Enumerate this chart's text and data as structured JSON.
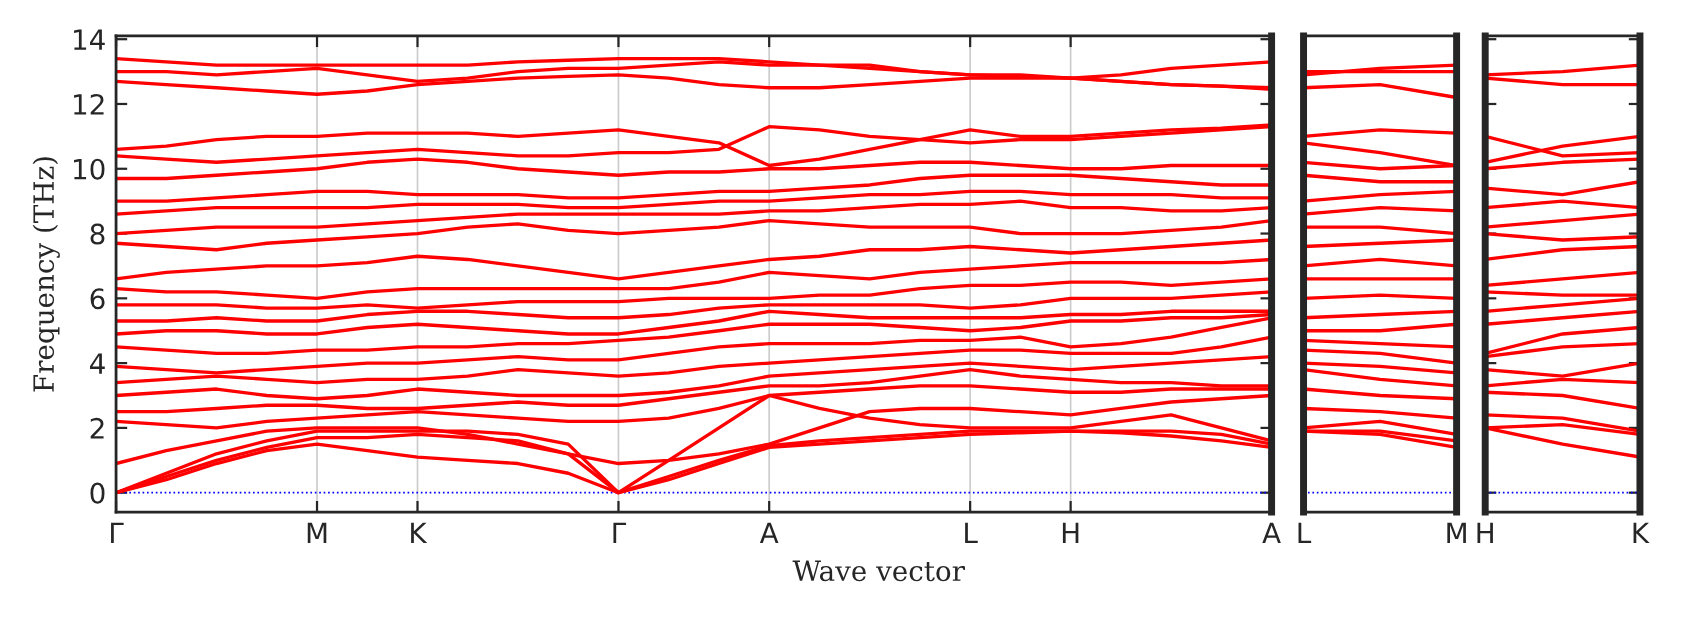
{
  "chart_data": [
    {
      "type": "line",
      "xlabel": "Wave vector",
      "ylabel": "Frequency (THz)",
      "ylim": [
        -0.6,
        14.1
      ],
      "categories": [
        "Γ",
        null,
        null,
        null,
        "M",
        null,
        "K",
        null,
        null,
        null,
        "Γ",
        null,
        null,
        "A",
        null,
        null,
        null,
        "L",
        null,
        "H",
        null,
        null,
        null,
        "A"
      ],
      "yticks": [
        0,
        2,
        4,
        6,
        8,
        10,
        12,
        14
      ],
      "grid": "x",
      "ref_lines": [
        {
          "axis": "y",
          "value": 0,
          "color": "#0000ff",
          "line_style": "dotted"
        }
      ],
      "series": [
        {
          "color": "#ff0000",
          "values": [
            0,
            0.4,
            0.9,
            1.3,
            1.5,
            1.3,
            1.1,
            1.0,
            0.9,
            0.6,
            0,
            0.4,
            0.9,
            1.4,
            1.5,
            1.6,
            1.7,
            1.8,
            1.85,
            1.9,
            1.85,
            1.75,
            1.6,
            1.4
          ]
        },
        {
          "color": "#ff0000",
          "values": [
            0,
            0.5,
            1.0,
            1.4,
            1.7,
            1.7,
            1.8,
            1.7,
            1.6,
            1.2,
            0,
            0.5,
            1.0,
            1.45,
            1.6,
            1.7,
            1.8,
            1.9,
            1.9,
            1.9,
            1.9,
            1.9,
            1.8,
            1.5
          ]
        },
        {
          "color": "#ff0000",
          "values": [
            0,
            0.6,
            1.2,
            1.6,
            1.9,
            1.9,
            1.9,
            1.9,
            1.8,
            1.5,
            0,
            1.0,
            2.0,
            3.0,
            2.6,
            2.3,
            2.1,
            2.0,
            2.0,
            2.0,
            2.2,
            2.4,
            2.0,
            1.6
          ]
        },
        {
          "color": "#ff0000",
          "values": [
            0.9,
            1.3,
            1.6,
            1.9,
            2.0,
            2.0,
            2.0,
            1.8,
            1.5,
            1.2,
            0.9,
            1.0,
            1.2,
            1.5,
            2.0,
            2.5,
            2.6,
            2.6,
            2.5,
            2.4,
            2.6,
            2.8,
            2.9,
            3.0
          ]
        },
        {
          "color": "#ff0000",
          "values": [
            2.2,
            2.1,
            2.0,
            2.2,
            2.3,
            2.4,
            2.5,
            2.4,
            2.3,
            2.2,
            2.2,
            2.3,
            2.6,
            3.0,
            3.1,
            3.2,
            3.3,
            3.3,
            3.2,
            3.1,
            3.1,
            3.2,
            3.2,
            3.2
          ]
        },
        {
          "color": "#ff0000",
          "values": [
            2.5,
            2.5,
            2.6,
            2.7,
            2.7,
            2.6,
            2.6,
            2.7,
            2.8,
            2.7,
            2.7,
            2.9,
            3.1,
            3.3,
            3.3,
            3.4,
            3.6,
            3.8,
            3.6,
            3.5,
            3.4,
            3.4,
            3.3,
            3.3
          ]
        },
        {
          "color": "#ff0000",
          "values": [
            3.0,
            3.1,
            3.2,
            3.0,
            2.9,
            3.0,
            3.2,
            3.1,
            3.0,
            3.0,
            3.0,
            3.1,
            3.3,
            3.6,
            3.7,
            3.8,
            3.9,
            4.0,
            3.9,
            3.8,
            3.9,
            4.0,
            4.1,
            4.2
          ]
        },
        {
          "color": "#ff0000",
          "values": [
            3.4,
            3.5,
            3.6,
            3.5,
            3.4,
            3.5,
            3.5,
            3.6,
            3.8,
            3.7,
            3.6,
            3.7,
            3.9,
            4.0,
            4.1,
            4.2,
            4.3,
            4.4,
            4.4,
            4.3,
            4.3,
            4.3,
            4.5,
            4.8
          ]
        },
        {
          "color": "#ff0000",
          "values": [
            3.9,
            3.8,
            3.7,
            3.8,
            3.9,
            4.0,
            4.0,
            4.1,
            4.2,
            4.1,
            4.1,
            4.3,
            4.5,
            4.6,
            4.6,
            4.6,
            4.7,
            4.7,
            4.8,
            4.5,
            4.6,
            4.8,
            5.1,
            5.4
          ]
        },
        {
          "color": "#ff0000",
          "values": [
            4.5,
            4.4,
            4.3,
            4.3,
            4.4,
            4.4,
            4.5,
            4.5,
            4.6,
            4.6,
            4.7,
            4.8,
            5.0,
            5.2,
            5.2,
            5.2,
            5.1,
            5.0,
            5.1,
            5.3,
            5.3,
            5.4,
            5.4,
            5.5
          ]
        },
        {
          "color": "#ff0000",
          "values": [
            4.9,
            5.0,
            5.0,
            4.9,
            4.9,
            5.1,
            5.2,
            5.1,
            5.0,
            4.9,
            4.9,
            5.1,
            5.3,
            5.6,
            5.5,
            5.4,
            5.4,
            5.4,
            5.4,
            5.5,
            5.5,
            5.6,
            5.6,
            5.6
          ]
        },
        {
          "color": "#ff0000",
          "values": [
            5.3,
            5.3,
            5.4,
            5.3,
            5.3,
            5.5,
            5.6,
            5.6,
            5.5,
            5.4,
            5.4,
            5.5,
            5.7,
            5.8,
            5.8,
            5.8,
            5.8,
            5.7,
            5.8,
            6.0,
            6.0,
            6.0,
            6.1,
            6.2
          ]
        },
        {
          "color": "#ff0000",
          "values": [
            5.8,
            5.8,
            5.8,
            5.7,
            5.7,
            5.8,
            5.7,
            5.8,
            5.9,
            5.9,
            5.9,
            6.0,
            6.0,
            6.0,
            6.1,
            6.1,
            6.3,
            6.4,
            6.4,
            6.5,
            6.5,
            6.4,
            6.5,
            6.6
          ]
        },
        {
          "color": "#ff0000",
          "values": [
            6.3,
            6.2,
            6.2,
            6.1,
            6.0,
            6.2,
            6.3,
            6.3,
            6.3,
            6.3,
            6.3,
            6.3,
            6.5,
            6.8,
            6.7,
            6.6,
            6.8,
            6.9,
            7.0,
            7.1,
            7.1,
            7.1,
            7.1,
            7.2
          ]
        },
        {
          "color": "#ff0000",
          "values": [
            6.6,
            6.8,
            6.9,
            7.0,
            7.0,
            7.1,
            7.3,
            7.2,
            7.0,
            6.8,
            6.6,
            6.8,
            7.0,
            7.2,
            7.3,
            7.5,
            7.5,
            7.6,
            7.5,
            7.4,
            7.5,
            7.6,
            7.7,
            7.8
          ]
        },
        {
          "color": "#ff0000",
          "values": [
            7.7,
            7.6,
            7.5,
            7.7,
            7.8,
            7.9,
            8.0,
            8.2,
            8.3,
            8.1,
            8.0,
            8.1,
            8.2,
            8.4,
            8.3,
            8.2,
            8.2,
            8.2,
            8.0,
            8.0,
            8.0,
            8.1,
            8.2,
            8.4
          ]
        },
        {
          "color": "#ff0000",
          "values": [
            8.0,
            8.1,
            8.2,
            8.2,
            8.2,
            8.3,
            8.4,
            8.5,
            8.6,
            8.6,
            8.6,
            8.6,
            8.6,
            8.7,
            8.7,
            8.8,
            8.9,
            8.9,
            9.0,
            8.8,
            8.8,
            8.7,
            8.7,
            8.8
          ]
        },
        {
          "color": "#ff0000",
          "values": [
            8.6,
            8.7,
            8.8,
            8.8,
            8.8,
            8.8,
            8.9,
            8.9,
            8.9,
            8.8,
            8.8,
            8.9,
            9.0,
            9.0,
            9.1,
            9.2,
            9.2,
            9.3,
            9.3,
            9.2,
            9.2,
            9.2,
            9.1,
            9.1
          ]
        },
        {
          "color": "#ff0000",
          "values": [
            9.0,
            9.0,
            9.1,
            9.2,
            9.3,
            9.3,
            9.2,
            9.2,
            9.2,
            9.1,
            9.1,
            9.2,
            9.3,
            9.3,
            9.4,
            9.5,
            9.7,
            9.8,
            9.8,
            9.8,
            9.7,
            9.6,
            9.5,
            9.5
          ]
        },
        {
          "color": "#ff0000",
          "values": [
            9.7,
            9.7,
            9.8,
            9.9,
            10.0,
            10.2,
            10.3,
            10.2,
            10.0,
            9.9,
            9.8,
            9.9,
            9.9,
            10.0,
            10.0,
            10.1,
            10.2,
            10.2,
            10.1,
            10.0,
            10.0,
            10.1,
            10.1,
            10.1
          ]
        },
        {
          "color": "#ff0000",
          "values": [
            10.4,
            10.3,
            10.2,
            10.3,
            10.4,
            10.5,
            10.6,
            10.5,
            10.4,
            10.4,
            10.5,
            10.5,
            10.6,
            11.3,
            11.2,
            11.0,
            10.9,
            10.8,
            10.9,
            10.9,
            11.0,
            11.1,
            11.2,
            11.3
          ]
        },
        {
          "color": "#ff0000",
          "values": [
            10.6,
            10.7,
            10.9,
            11.0,
            11.0,
            11.1,
            11.1,
            11.1,
            11.0,
            11.1,
            11.2,
            11.0,
            10.8,
            10.1,
            10.3,
            10.6,
            10.9,
            11.2,
            11.0,
            11.0,
            11.1,
            11.2,
            11.25,
            11.35
          ]
        },
        {
          "color": "#ff0000",
          "values": [
            12.7,
            12.6,
            12.5,
            12.4,
            12.3,
            12.4,
            12.6,
            12.7,
            12.8,
            12.85,
            12.9,
            12.8,
            12.6,
            12.5,
            12.5,
            12.6,
            12.7,
            12.8,
            12.8,
            12.8,
            12.7,
            12.6,
            12.55,
            12.5
          ]
        },
        {
          "color": "#ff0000",
          "values": [
            13.0,
            13.0,
            12.9,
            13.0,
            13.1,
            12.9,
            12.7,
            12.8,
            13.0,
            13.1,
            13.1,
            13.2,
            13.3,
            13.2,
            13.2,
            13.1,
            13.0,
            12.9,
            12.9,
            12.8,
            12.9,
            13.1,
            13.2,
            13.3
          ]
        },
        {
          "color": "#ff0000",
          "values": [
            13.4,
            13.3,
            13.2,
            13.2,
            13.2,
            13.2,
            13.2,
            13.2,
            13.3,
            13.35,
            13.4,
            13.4,
            13.4,
            13.3,
            13.2,
            13.2,
            13.0,
            12.9,
            12.85,
            12.8,
            12.7,
            12.6,
            12.55,
            12.45
          ]
        }
      ]
    },
    {
      "type": "line",
      "ylim": [
        -0.6,
        14.1
      ],
      "tick_labels": "x",
      "categories": [
        "L",
        null,
        "M"
      ],
      "ref_lines": [
        {
          "axis": "y",
          "value": 0,
          "color": "#0000ff",
          "line_style": "dotted"
        }
      ],
      "series": [
        {
          "color": "#ff0000",
          "values": [
            1.9,
            1.8,
            1.4
          ]
        },
        {
          "color": "#ff0000",
          "values": [
            1.9,
            1.9,
            1.6
          ]
        },
        {
          "color": "#ff0000",
          "values": [
            2.0,
            2.2,
            1.8
          ]
        },
        {
          "color": "#ff0000",
          "values": [
            2.6,
            2.5,
            2.3
          ]
        },
        {
          "color": "#ff0000",
          "values": [
            3.2,
            3.0,
            2.9
          ]
        },
        {
          "color": "#ff0000",
          "values": [
            3.8,
            3.5,
            3.3
          ]
        },
        {
          "color": "#ff0000",
          "values": [
            4.0,
            3.9,
            3.7
          ]
        },
        {
          "color": "#ff0000",
          "values": [
            4.4,
            4.3,
            4.0
          ]
        },
        {
          "color": "#ff0000",
          "values": [
            4.7,
            4.6,
            4.5
          ]
        },
        {
          "color": "#ff0000",
          "values": [
            5.0,
            5.0,
            5.2
          ]
        },
        {
          "color": "#ff0000",
          "values": [
            5.4,
            5.5,
            5.6
          ]
        },
        {
          "color": "#ff0000",
          "values": [
            6.0,
            6.1,
            6.0
          ]
        },
        {
          "color": "#ff0000",
          "values": [
            6.6,
            6.6,
            6.6
          ]
        },
        {
          "color": "#ff0000",
          "values": [
            7.0,
            7.2,
            7.0
          ]
        },
        {
          "color": "#ff0000",
          "values": [
            7.6,
            7.7,
            7.8
          ]
        },
        {
          "color": "#ff0000",
          "values": [
            8.2,
            8.2,
            8.0
          ]
        },
        {
          "color": "#ff0000",
          "values": [
            8.6,
            8.8,
            8.7
          ]
        },
        {
          "color": "#ff0000",
          "values": [
            9.0,
            9.2,
            9.3
          ]
        },
        {
          "color": "#ff0000",
          "values": [
            9.8,
            9.6,
            9.6
          ]
        },
        {
          "color": "#ff0000",
          "values": [
            10.2,
            10.0,
            10.1
          ]
        },
        {
          "color": "#ff0000",
          "values": [
            10.8,
            10.5,
            10.1
          ]
        },
        {
          "color": "#ff0000",
          "values": [
            11.0,
            11.2,
            11.1
          ]
        },
        {
          "color": "#ff0000",
          "values": [
            12.5,
            12.6,
            12.2
          ]
        },
        {
          "color": "#ff0000",
          "values": [
            12.9,
            13.1,
            13.2
          ]
        },
        {
          "color": "#ff0000",
          "values": [
            13.0,
            13.0,
            13.0
          ]
        }
      ]
    },
    {
      "type": "line",
      "ylim": [
        -0.6,
        14.1
      ],
      "tick_labels": "x",
      "categories": [
        "H",
        null,
        "K"
      ],
      "yticks": [
        {
          "value": 0,
          "label": null
        },
        {
          "value": 2,
          "label": null
        },
        {
          "value": 4,
          "label": null
        },
        {
          "value": 6,
          "label": null
        },
        {
          "value": 8,
          "label": null
        },
        {
          "value": 10,
          "label": null
        },
        {
          "value": 12,
          "label": null
        },
        {
          "value": 14,
          "label": null
        }
      ],
      "ref_lines": [
        {
          "axis": "y",
          "value": 0,
          "color": "#0000ff",
          "line_style": "dotted"
        }
      ],
      "series": [
        {
          "color": "#ff0000",
          "values": [
            2.0,
            1.5,
            1.1
          ]
        },
        {
          "color": "#ff0000",
          "values": [
            2.0,
            2.1,
            1.8
          ]
        },
        {
          "color": "#ff0000",
          "values": [
            2.4,
            2.3,
            1.9
          ]
        },
        {
          "color": "#ff0000",
          "values": [
            3.1,
            3.0,
            2.6
          ]
        },
        {
          "color": "#ff0000",
          "values": [
            3.3,
            3.5,
            3.4
          ]
        },
        {
          "color": "#ff0000",
          "values": [
            3.8,
            3.6,
            4.0
          ]
        },
        {
          "color": "#ff0000",
          "values": [
            4.2,
            4.5,
            4.6
          ]
        },
        {
          "color": "#ff0000",
          "values": [
            4.3,
            4.9,
            5.1
          ]
        },
        {
          "color": "#ff0000",
          "values": [
            5.2,
            5.4,
            5.6
          ]
        },
        {
          "color": "#ff0000",
          "values": [
            5.6,
            5.8,
            6.0
          ]
        },
        {
          "color": "#ff0000",
          "values": [
            6.2,
            6.1,
            6.1
          ]
        },
        {
          "color": "#ff0000",
          "values": [
            6.4,
            6.6,
            6.8
          ]
        },
        {
          "color": "#ff0000",
          "values": [
            7.2,
            7.5,
            7.6
          ]
        },
        {
          "color": "#ff0000",
          "values": [
            8.0,
            7.8,
            7.9
          ]
        },
        {
          "color": "#ff0000",
          "values": [
            8.2,
            8.4,
            8.6
          ]
        },
        {
          "color": "#ff0000",
          "values": [
            8.8,
            9.0,
            8.8
          ]
        },
        {
          "color": "#ff0000",
          "values": [
            9.4,
            9.2,
            9.6
          ]
        },
        {
          "color": "#ff0000",
          "values": [
            10.0,
            10.2,
            10.3
          ]
        },
        {
          "color": "#ff0000",
          "values": [
            10.2,
            10.7,
            11.0
          ]
        },
        {
          "color": "#ff0000",
          "values": [
            11.0,
            10.4,
            10.5
          ]
        },
        {
          "color": "#ff0000",
          "values": [
            12.8,
            12.6,
            12.6
          ]
        },
        {
          "color": "#ff0000",
          "values": [
            12.9,
            13.0,
            13.2
          ]
        }
      ]
    }
  ]
}
